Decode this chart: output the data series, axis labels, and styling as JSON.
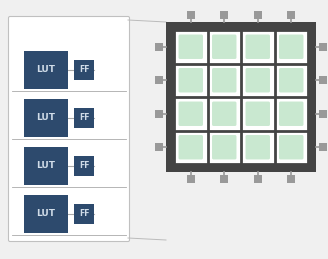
{
  "bg_color": "#f0f0f0",
  "lut_color": "#2d4a6d",
  "ff_color": "#2d4a6d",
  "lut_text_color": "#d0dce8",
  "ff_text_color": "#d0dce8",
  "box_bg": "#ffffff",
  "box_border": "#c0c0c0",
  "grid_bg": "#444444",
  "cell_color": "#c9e8d0",
  "io_color": "#999999",
  "line_color": "#aaaaaa",
  "conn_color": "#bbbbbb",
  "n_rows": 4,
  "n_cols": 4,
  "lut_label": "LUT",
  "ff_label": "FF",
  "figw": 3.28,
  "figh": 2.59,
  "dpi": 100
}
